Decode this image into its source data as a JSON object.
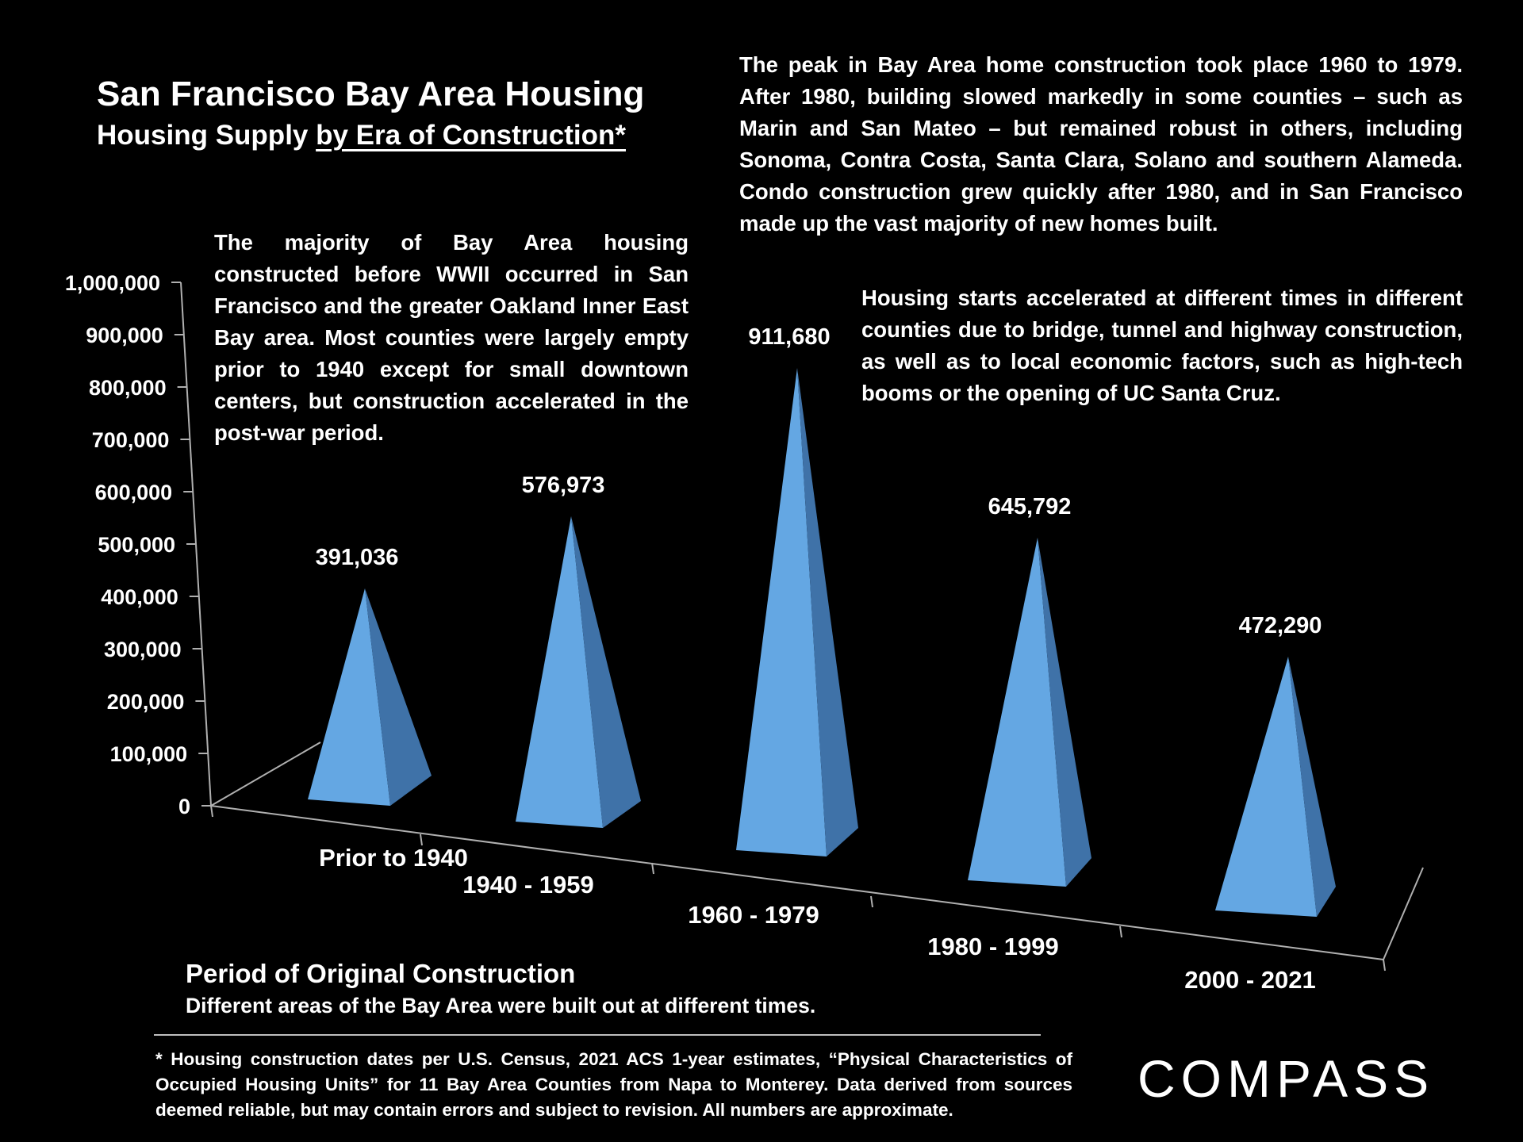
{
  "header": {
    "title": "San Francisco Bay Area Housing",
    "subtitle_plain": "Housing Supply ",
    "subtitle_underlined": "by Era of Construction*"
  },
  "annotations": {
    "peak": "The peak in Bay Area home construction took place 1960 to 1979. After 1980, building slowed markedly in some counties – such as Marin and San Mateo – but remained robust in others, including Sonoma, Contra Costa, Santa Clara, Solano and southern Alameda. Condo construction grew quickly after 1980, and in San Francisco made up the vast majority of new homes built.",
    "prewar": "The majority of Bay Area housing constructed before WWII occurred in San Francisco and the greater Oakland Inner East Bay area. Most counties were largely empty prior to 1940 except for small downtown centers, but construction accelerated in the post-war period.",
    "starts": "Housing starts accelerated at different times in different counties due to bridge, tunnel and highway construction, as well as to local economic factors, such as high-tech booms or the opening of UC Santa Cruz."
  },
  "footer": {
    "axis_title": "Period of Original Construction",
    "axis_subtitle": "Different areas of the Bay Area were built out at different times.",
    "note": "* Housing construction dates per U.S. Census, 2021 ACS 1-year estimates, “Physical Characteristics of Occupied Housing Units” for 11 Bay Area Counties from Napa to Monterey. Data derived from sources deemed reliable, but may contain errors and subject to revision. All numbers are approximate.",
    "logo": "COMPASS"
  },
  "colors": {
    "background": "#000000",
    "pyramid_front": "#64a7e3",
    "pyramid_side": "#3f72a8",
    "axis": "#b0b0b0"
  },
  "chart_data": {
    "type": "bar",
    "style": "3d-pyramid",
    "categories": [
      "Prior to 1940",
      "1940 - 1959",
      "1960 - 1979",
      "1980 - 1999",
      "2000 - 2021"
    ],
    "values": [
      391036,
      576973,
      911680,
      645792,
      472290
    ],
    "data_labels": [
      "391,036",
      "576,973",
      "911,680",
      "645,792",
      "472,290"
    ],
    "y_ticks": [
      0,
      100000,
      200000,
      300000,
      400000,
      500000,
      600000,
      700000,
      800000,
      900000,
      1000000
    ],
    "y_tick_labels": [
      "0",
      "100,000",
      "200,000",
      "300,000",
      "400,000",
      "500,000",
      "600,000",
      "700,000",
      "800,000",
      "900,000",
      "1,000,000"
    ],
    "ylim": [
      0,
      1000000
    ],
    "xlabel": "Period of Original Construction",
    "ylabel": "",
    "grid": false
  }
}
